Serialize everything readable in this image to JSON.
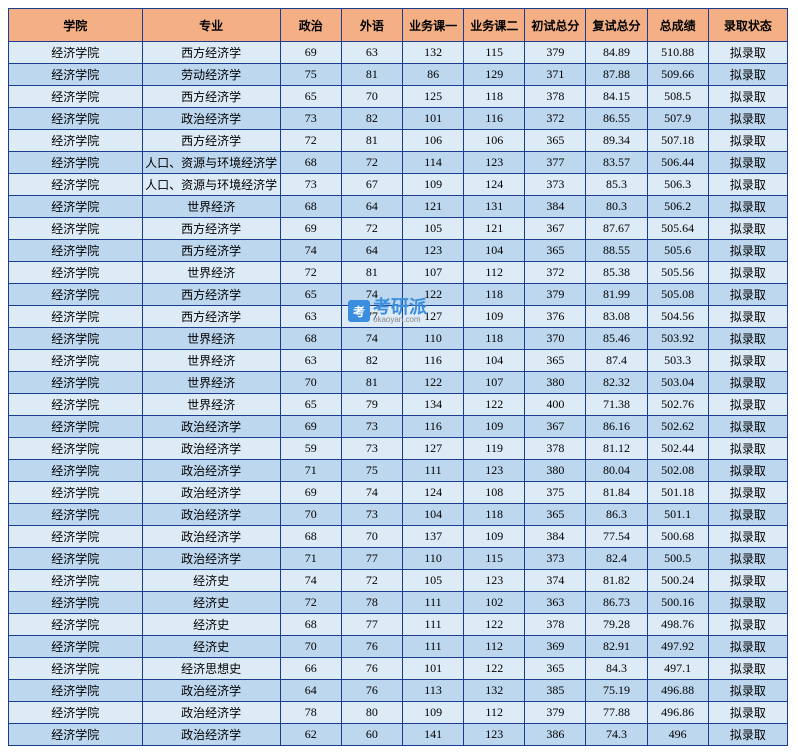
{
  "columns": [
    "学院",
    "专业",
    "政治",
    "外语",
    "业务课一",
    "业务课二",
    "初试总分",
    "复试总分",
    "总成绩",
    "录取状态"
  ],
  "rows": [
    [
      "经济学院",
      "西方经济学",
      "69",
      "63",
      "132",
      "115",
      "379",
      "84.89",
      "510.88",
      "拟录取"
    ],
    [
      "经济学院",
      "劳动经济学",
      "75",
      "81",
      "86",
      "129",
      "371",
      "87.88",
      "509.66",
      "拟录取"
    ],
    [
      "经济学院",
      "西方经济学",
      "65",
      "70",
      "125",
      "118",
      "378",
      "84.15",
      "508.5",
      "拟录取"
    ],
    [
      "经济学院",
      "政治经济学",
      "73",
      "82",
      "101",
      "116",
      "372",
      "86.55",
      "507.9",
      "拟录取"
    ],
    [
      "经济学院",
      "西方经济学",
      "72",
      "81",
      "106",
      "106",
      "365",
      "89.34",
      "507.18",
      "拟录取"
    ],
    [
      "经济学院",
      "人口、资源与环境经济学",
      "68",
      "72",
      "114",
      "123",
      "377",
      "83.57",
      "506.44",
      "拟录取"
    ],
    [
      "经济学院",
      "人口、资源与环境经济学",
      "73",
      "67",
      "109",
      "124",
      "373",
      "85.3",
      "506.3",
      "拟录取"
    ],
    [
      "经济学院",
      "世界经济",
      "68",
      "64",
      "121",
      "131",
      "384",
      "80.3",
      "506.2",
      "拟录取"
    ],
    [
      "经济学院",
      "西方经济学",
      "69",
      "72",
      "105",
      "121",
      "367",
      "87.67",
      "505.64",
      "拟录取"
    ],
    [
      "经济学院",
      "西方经济学",
      "74",
      "64",
      "123",
      "104",
      "365",
      "88.55",
      "505.6",
      "拟录取"
    ],
    [
      "经济学院",
      "世界经济",
      "72",
      "81",
      "107",
      "112",
      "372",
      "85.38",
      "505.56",
      "拟录取"
    ],
    [
      "经济学院",
      "西方经济学",
      "65",
      "74",
      "122",
      "118",
      "379",
      "81.99",
      "505.08",
      "拟录取"
    ],
    [
      "经济学院",
      "西方经济学",
      "63",
      "77",
      "127",
      "109",
      "376",
      "83.08",
      "504.56",
      "拟录取"
    ],
    [
      "经济学院",
      "世界经济",
      "68",
      "74",
      "110",
      "118",
      "370",
      "85.46",
      "503.92",
      "拟录取"
    ],
    [
      "经济学院",
      "世界经济",
      "63",
      "82",
      "116",
      "104",
      "365",
      "87.4",
      "503.3",
      "拟录取"
    ],
    [
      "经济学院",
      "世界经济",
      "70",
      "81",
      "122",
      "107",
      "380",
      "82.32",
      "503.04",
      "拟录取"
    ],
    [
      "经济学院",
      "世界经济",
      "65",
      "79",
      "134",
      "122",
      "400",
      "71.38",
      "502.76",
      "拟录取"
    ],
    [
      "经济学院",
      "政治经济学",
      "69",
      "73",
      "116",
      "109",
      "367",
      "86.16",
      "502.62",
      "拟录取"
    ],
    [
      "经济学院",
      "政治经济学",
      "59",
      "73",
      "127",
      "119",
      "378",
      "81.12",
      "502.44",
      "拟录取"
    ],
    [
      "经济学院",
      "政治经济学",
      "71",
      "75",
      "111",
      "123",
      "380",
      "80.04",
      "502.08",
      "拟录取"
    ],
    [
      "经济学院",
      "政治经济学",
      "69",
      "74",
      "124",
      "108",
      "375",
      "81.84",
      "501.18",
      "拟录取"
    ],
    [
      "经济学院",
      "政治经济学",
      "70",
      "73",
      "104",
      "118",
      "365",
      "86.3",
      "501.1",
      "拟录取"
    ],
    [
      "经济学院",
      "政治经济学",
      "68",
      "70",
      "137",
      "109",
      "384",
      "77.54",
      "500.68",
      "拟录取"
    ],
    [
      "经济学院",
      "政治经济学",
      "71",
      "77",
      "110",
      "115",
      "373",
      "82.4",
      "500.5",
      "拟录取"
    ],
    [
      "经济学院",
      "经济史",
      "74",
      "72",
      "105",
      "123",
      "374",
      "81.82",
      "500.24",
      "拟录取"
    ],
    [
      "经济学院",
      "经济史",
      "72",
      "78",
      "111",
      "102",
      "363",
      "86.73",
      "500.16",
      "拟录取"
    ],
    [
      "经济学院",
      "经济史",
      "68",
      "77",
      "111",
      "122",
      "378",
      "79.28",
      "498.76",
      "拟录取"
    ],
    [
      "经济学院",
      "经济史",
      "70",
      "76",
      "111",
      "112",
      "369",
      "82.91",
      "497.92",
      "拟录取"
    ],
    [
      "经济学院",
      "经济思想史",
      "66",
      "76",
      "101",
      "122",
      "365",
      "84.3",
      "497.1",
      "拟录取"
    ],
    [
      "经济学院",
      "政治经济学",
      "64",
      "76",
      "113",
      "132",
      "385",
      "75.19",
      "496.88",
      "拟录取"
    ],
    [
      "经济学院",
      "政治经济学",
      "78",
      "80",
      "109",
      "112",
      "379",
      "77.88",
      "496.86",
      "拟录取"
    ],
    [
      "经济学院",
      "政治经济学",
      "62",
      "60",
      "141",
      "123",
      "386",
      "74.3",
      "496",
      "拟录取"
    ]
  ],
  "watermark": {
    "logo_text": "考",
    "main_text": "考研派",
    "sub_text": "okaoyan.com"
  },
  "style": {
    "header_bg": "#f4b084",
    "row_odd_bg": "#ddebf7",
    "row_even_bg": "#bdd7ee",
    "border_color": "#1a3d8f"
  }
}
